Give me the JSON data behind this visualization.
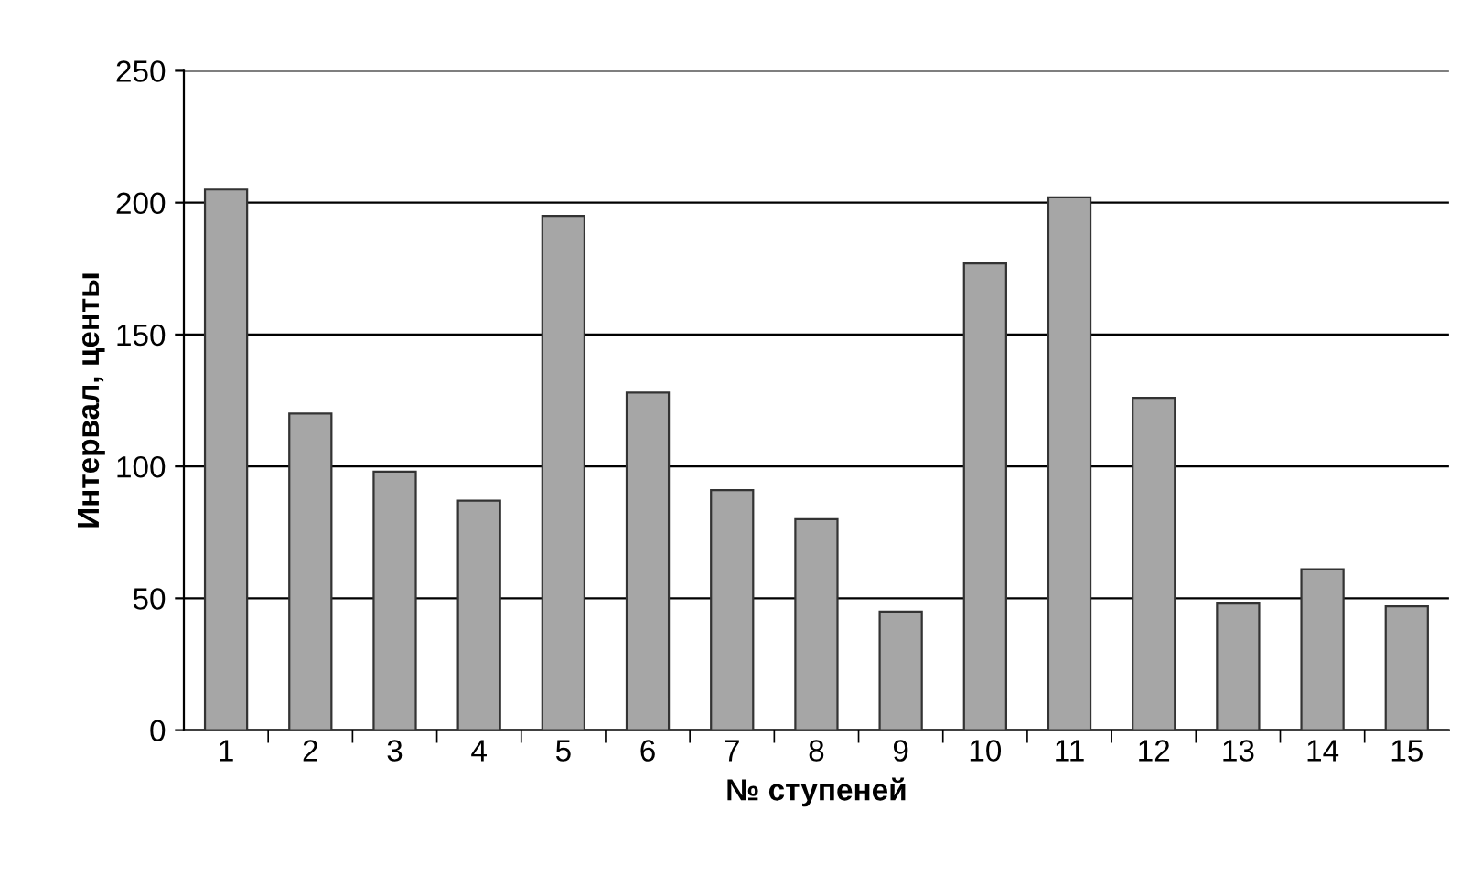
{
  "chart_data": {
    "type": "bar",
    "xlabel": "№ ступеней",
    "ylabel": "Интервал, центы",
    "categories": [
      "1",
      "2",
      "3",
      "4",
      "5",
      "6",
      "7",
      "8",
      "9",
      "10",
      "11",
      "12",
      "13",
      "14",
      "15"
    ],
    "values": [
      205,
      120,
      98,
      87,
      195,
      128,
      91,
      80,
      45,
      177,
      202,
      126,
      48,
      61,
      47
    ],
    "color": "#a6a6a6",
    "ylim": [
      0,
      250
    ],
    "yticks": [
      0,
      50,
      100,
      150,
      200,
      250
    ],
    "grid": "y"
  }
}
